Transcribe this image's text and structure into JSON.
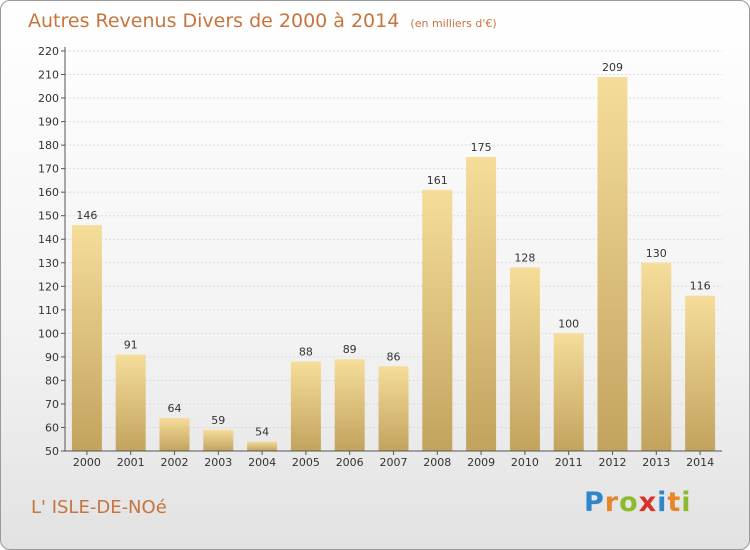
{
  "chart_data": {
    "type": "bar",
    "title": "Autres Revenus Divers de 2000 à 2014",
    "subtitle": "(en milliers d'€)",
    "categories": [
      "2000",
      "2001",
      "2002",
      "2003",
      "2004",
      "2005",
      "2006",
      "2007",
      "2008",
      "2009",
      "2010",
      "2011",
      "2012",
      "2013",
      "2014"
    ],
    "values": [
      146,
      91,
      64,
      59,
      54,
      88,
      89,
      86,
      161,
      175,
      128,
      100,
      209,
      130,
      116
    ],
    "ylim": [
      50,
      220
    ],
    "yticks": [
      50,
      60,
      70,
      80,
      90,
      100,
      110,
      120,
      130,
      140,
      150,
      160,
      170,
      180,
      190,
      200,
      210,
      220
    ],
    "grid": true,
    "data_labels": true,
    "colors": {
      "bar_light": "#f5dd9a",
      "bar_dark": "#c2a35e",
      "grid": "#dcdcdc",
      "text": "#333333"
    }
  },
  "commune": "L' ISLE-DE-NOé",
  "brand": {
    "letters": [
      {
        "ch": "P",
        "color": "#2f86c8"
      },
      {
        "ch": "r",
        "color": "#e8852a"
      },
      {
        "ch": "o",
        "color": "#8dbb2e"
      },
      {
        "ch": "x",
        "color": "#d9322c"
      },
      {
        "ch": "i",
        "color": "#2f86c8"
      },
      {
        "ch": "t",
        "color": "#e8852a"
      },
      {
        "ch": "i",
        "color": "#8dbb2e"
      }
    ]
  }
}
